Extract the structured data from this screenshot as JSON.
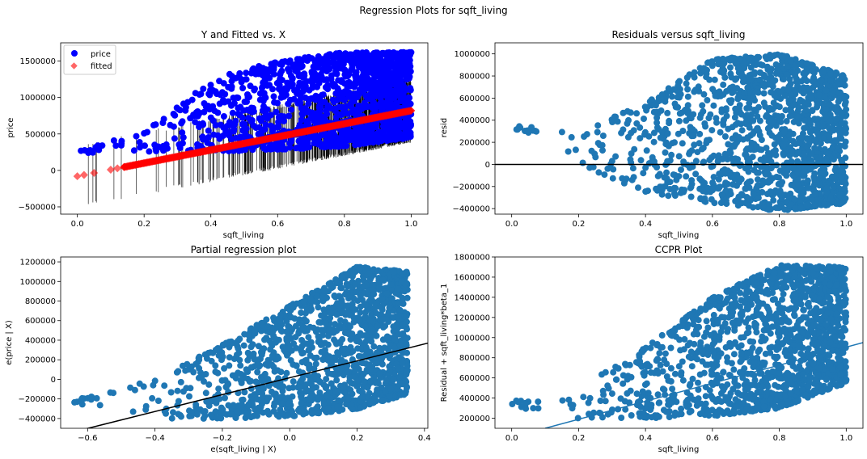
{
  "suptitle": "Regression Plots for sqft_living",
  "colors": {
    "price": "#0000ff",
    "fitted": "#ff0000",
    "scatter": "#1f77b4",
    "line": "#000000",
    "ccpr_line": "#1f77b4"
  },
  "chart_data": [
    {
      "type": "scatter",
      "title": "Y and Fitted vs. X",
      "xlabel": "sqft_living",
      "ylabel": "price",
      "xlim": [
        -0.05,
        1.05
      ],
      "ylim": [
        -600000,
        1750000
      ],
      "xticks": [
        0.0,
        0.2,
        0.4,
        0.6,
        0.8,
        1.0
      ],
      "xtick_labels": [
        "0.0",
        "0.2",
        "0.4",
        "0.6",
        "0.8",
        "1.0"
      ],
      "yticks": [
        -500000,
        0,
        500000,
        1000000,
        1500000
      ],
      "ytick_labels": [
        "−500000",
        "0",
        "500000",
        "1000000",
        "1500000"
      ],
      "legend": {
        "position": "upper left",
        "entries": [
          "price",
          "fitted"
        ]
      },
      "series": [
        {
          "name": "price",
          "marker": "circle",
          "lower_bound": [
            [
              0.0,
              230000
            ],
            [
              0.2,
              260000
            ],
            [
              0.4,
              260000
            ],
            [
              0.6,
              280000
            ],
            [
              0.8,
              330000
            ],
            [
              1.0,
              450000
            ]
          ],
          "upper_bound": [
            [
              0.0,
              290000
            ],
            [
              0.2,
              520000
            ],
            [
              0.4,
              1250000
            ],
            [
              0.6,
              1500000
            ],
            [
              0.8,
              1620000
            ],
            [
              1.0,
              1620000
            ]
          ]
        },
        {
          "name": "fitted",
          "marker": "diamond",
          "x": [
            0.0,
            0.2,
            0.4,
            0.6,
            0.8,
            1.0
          ],
          "values": [
            -80000,
            100000,
            280000,
            460000,
            640000,
            820000
          ]
        }
      ]
    },
    {
      "type": "scatter",
      "title": "Residuals versus sqft_living",
      "xlabel": "sqft_living",
      "ylabel": "resid",
      "xlim": [
        -0.05,
        1.05
      ],
      "ylim": [
        -450000,
        1100000
      ],
      "xticks": [
        0.0,
        0.2,
        0.4,
        0.6,
        0.8,
        1.0
      ],
      "xtick_labels": [
        "0.0",
        "0.2",
        "0.4",
        "0.6",
        "0.8",
        "1.0"
      ],
      "yticks": [
        -400000,
        -200000,
        0,
        200000,
        400000,
        600000,
        800000,
        1000000
      ],
      "ytick_labels": [
        "−400000",
        "−200000",
        "0",
        "200000",
        "400000",
        "600000",
        "800000",
        "1000000"
      ],
      "hline": 0,
      "lower_bound": [
        [
          0.0,
          320000
        ],
        [
          0.2,
          0
        ],
        [
          0.4,
          -250000
        ],
        [
          0.6,
          -350000
        ],
        [
          0.8,
          -420000
        ],
        [
          1.0,
          -350000
        ]
      ],
      "upper_bound": [
        [
          0.0,
          360000
        ],
        [
          0.2,
          300000
        ],
        [
          0.4,
          550000
        ],
        [
          0.6,
          950000
        ],
        [
          0.8,
          1000000
        ],
        [
          1.0,
          800000
        ]
      ]
    },
    {
      "type": "scatter",
      "title": "Partial regression plot",
      "xlabel": "e(sqft_living | X)",
      "ylabel": "e(price | X)",
      "xlim": [
        -0.68,
        0.41
      ],
      "ylim": [
        -500000,
        1250000
      ],
      "xticks": [
        -0.6,
        -0.4,
        -0.2,
        0.0,
        0.2,
        0.4
      ],
      "xtick_labels": [
        "−0.6",
        "−0.4",
        "−0.2",
        "0.0",
        "0.2",
        "0.4"
      ],
      "yticks": [
        -400000,
        -200000,
        0,
        200000,
        400000,
        600000,
        800000,
        1000000,
        1200000
      ],
      "ytick_labels": [
        "−400000",
        "−200000",
        "0",
        "200000",
        "400000",
        "600000",
        "800000",
        "1000000",
        "1200000"
      ],
      "fit_line": [
        [
          -0.68,
          -570000
        ],
        [
          0.41,
          370000
        ]
      ],
      "lower_bound": [
        [
          -0.64,
          -250000
        ],
        [
          -0.4,
          -400000
        ],
        [
          -0.2,
          -400000
        ],
        [
          0.0,
          -380000
        ],
        [
          0.2,
          -300000
        ],
        [
          0.35,
          -150000
        ]
      ],
      "upper_bound": [
        [
          -0.64,
          -210000
        ],
        [
          -0.4,
          0
        ],
        [
          -0.2,
          350000
        ],
        [
          0.0,
          750000
        ],
        [
          0.2,
          1150000
        ],
        [
          0.35,
          1100000
        ]
      ]
    },
    {
      "type": "scatter",
      "title": "CCPR Plot",
      "xlabel": "sqft_living",
      "ylabel": "Residual + sqft_living*beta_1",
      "xlim": [
        -0.05,
        1.05
      ],
      "ylim": [
        100000,
        1800000
      ],
      "xticks": [
        0.0,
        0.2,
        0.4,
        0.6,
        0.8,
        1.0
      ],
      "xtick_labels": [
        "0.0",
        "0.2",
        "0.4",
        "0.6",
        "0.8",
        "1.0"
      ],
      "yticks": [
        200000,
        400000,
        600000,
        800000,
        1000000,
        1200000,
        1400000,
        1600000,
        1800000
      ],
      "ytick_labels": [
        "200000",
        "400000",
        "600000",
        "800000",
        "1000000",
        "1200000",
        "1400000",
        "1600000",
        "1800000"
      ],
      "fit_line": [
        [
          0.1,
          100000
        ],
        [
          1.05,
          950000
        ]
      ],
      "lower_bound": [
        [
          0.0,
          320000
        ],
        [
          0.2,
          200000
        ],
        [
          0.4,
          200000
        ],
        [
          0.6,
          220000
        ],
        [
          0.8,
          300000
        ],
        [
          1.0,
          550000
        ]
      ],
      "upper_bound": [
        [
          0.0,
          370000
        ],
        [
          0.2,
          500000
        ],
        [
          0.4,
          900000
        ],
        [
          0.6,
          1400000
        ],
        [
          0.8,
          1720000
        ],
        [
          1.0,
          1700000
        ]
      ]
    }
  ]
}
